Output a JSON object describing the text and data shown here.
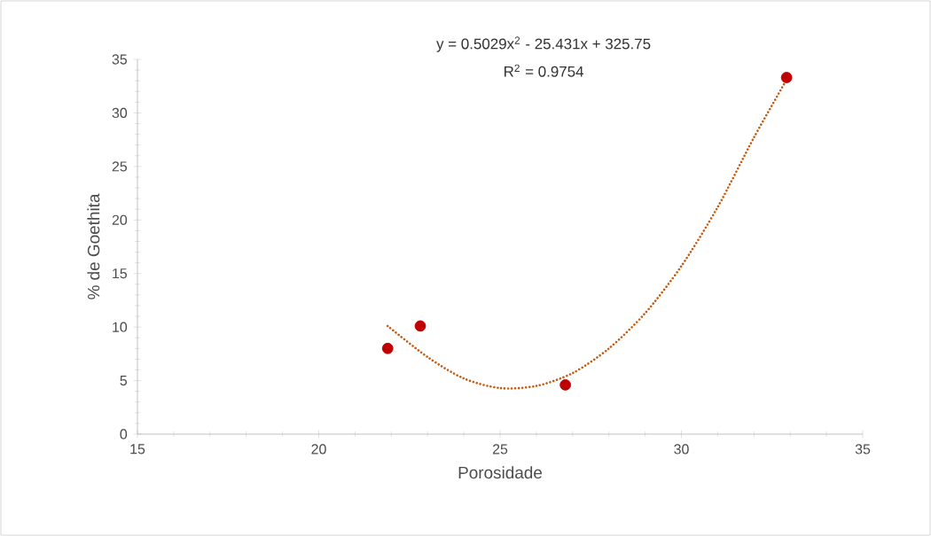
{
  "chart_data": {
    "type": "scatter",
    "xlabel": "Porosidade",
    "ylabel": "% de Goethita",
    "xlim": [
      15,
      35
    ],
    "xticks": [
      15,
      20,
      25,
      30,
      35
    ],
    "ylim": [
      0,
      35
    ],
    "yticks": [
      0,
      5,
      10,
      15,
      20,
      25,
      30,
      35
    ],
    "annotations": [
      "y = 0.5029x$^{2}$ - 25.431x + 325.75",
      "R$^{2}$ = 0.9754"
    ],
    "series": [
      {
        "color": "#c00000",
        "marker": "circle",
        "x": [
          21.9,
          22.8,
          26.8,
          32.9
        ],
        "values": [
          8.0,
          10.1,
          4.6,
          33.3
        ]
      },
      {
        "type": "line",
        "color": "#c55a11",
        "marker": "none",
        "line_style": "dotted",
        "x": [
          21.9,
          23,
          24,
          25,
          26,
          27,
          28,
          29,
          30,
          31,
          32,
          32.9
        ],
        "values": [
          10.1,
          7.2,
          5.2,
          4.3,
          4.5,
          5.7,
          8.0,
          11.3,
          15.7,
          21.2,
          27.7,
          33.1
        ]
      }
    ]
  }
}
